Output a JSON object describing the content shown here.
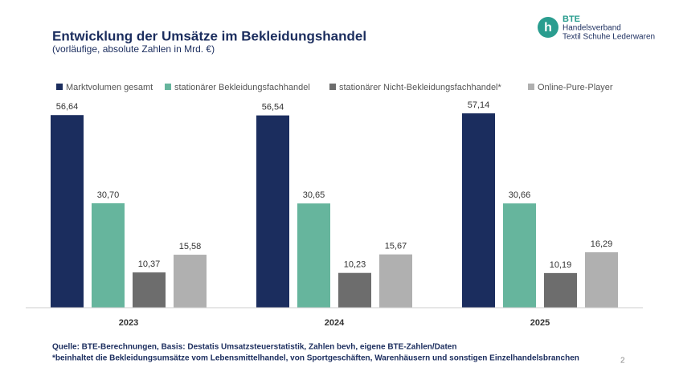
{
  "chart_data": {
    "type": "bar",
    "title": "Entwicklung der Umsätze im Bekleidungshandel",
    "subtitle": "(vorläufige, absolute Zahlen in Mrd. €)",
    "categories": [
      "2023",
      "2024",
      "2025"
    ],
    "series": [
      {
        "name": "Marktvolumen gesamt",
        "color": "#1b2d5e",
        "values": [
          56.64,
          56.54,
          57.14
        ],
        "value_labels": [
          "56,64",
          "56,54",
          "57,14"
        ]
      },
      {
        "name": "stationärer Bekleidungsfachhandel",
        "color": "#66b59d",
        "values": [
          30.7,
          30.65,
          30.66
        ],
        "value_labels": [
          "30,70",
          "30,65",
          "30,66"
        ]
      },
      {
        "name": "stationärer Nicht-Bekleidungsfachhandel*",
        "color": "#6d6d6d",
        "values": [
          10.37,
          10.23,
          10.19
        ],
        "value_labels": [
          "10,37",
          "10,23",
          "10,19"
        ]
      },
      {
        "name": "Online-Pure-Player",
        "color": "#b0b0b0",
        "values": [
          15.58,
          15.67,
          16.29
        ],
        "value_labels": [
          "15,58",
          "15,67",
          "16,29"
        ]
      }
    ],
    "ylim": [
      0,
      60
    ],
    "legend": "top"
  },
  "footer": {
    "source": "Quelle: BTE-Berechnungen, Basis: Destatis Umsatzsteuerstatistik, Zahlen bevh, eigene BTE-Zahlen/Daten",
    "note": "*beinhaltet die Bekleidungsumsätze vom Lebensmittelhandel, von Sportgeschäften, Warenhäusern und sonstigen Einzelhandelsbranchen"
  },
  "page_number": "2",
  "logo": {
    "name": "BTE",
    "line1": "Handelsverband",
    "line2": "Textil  Schuhe  Lederwaren"
  }
}
